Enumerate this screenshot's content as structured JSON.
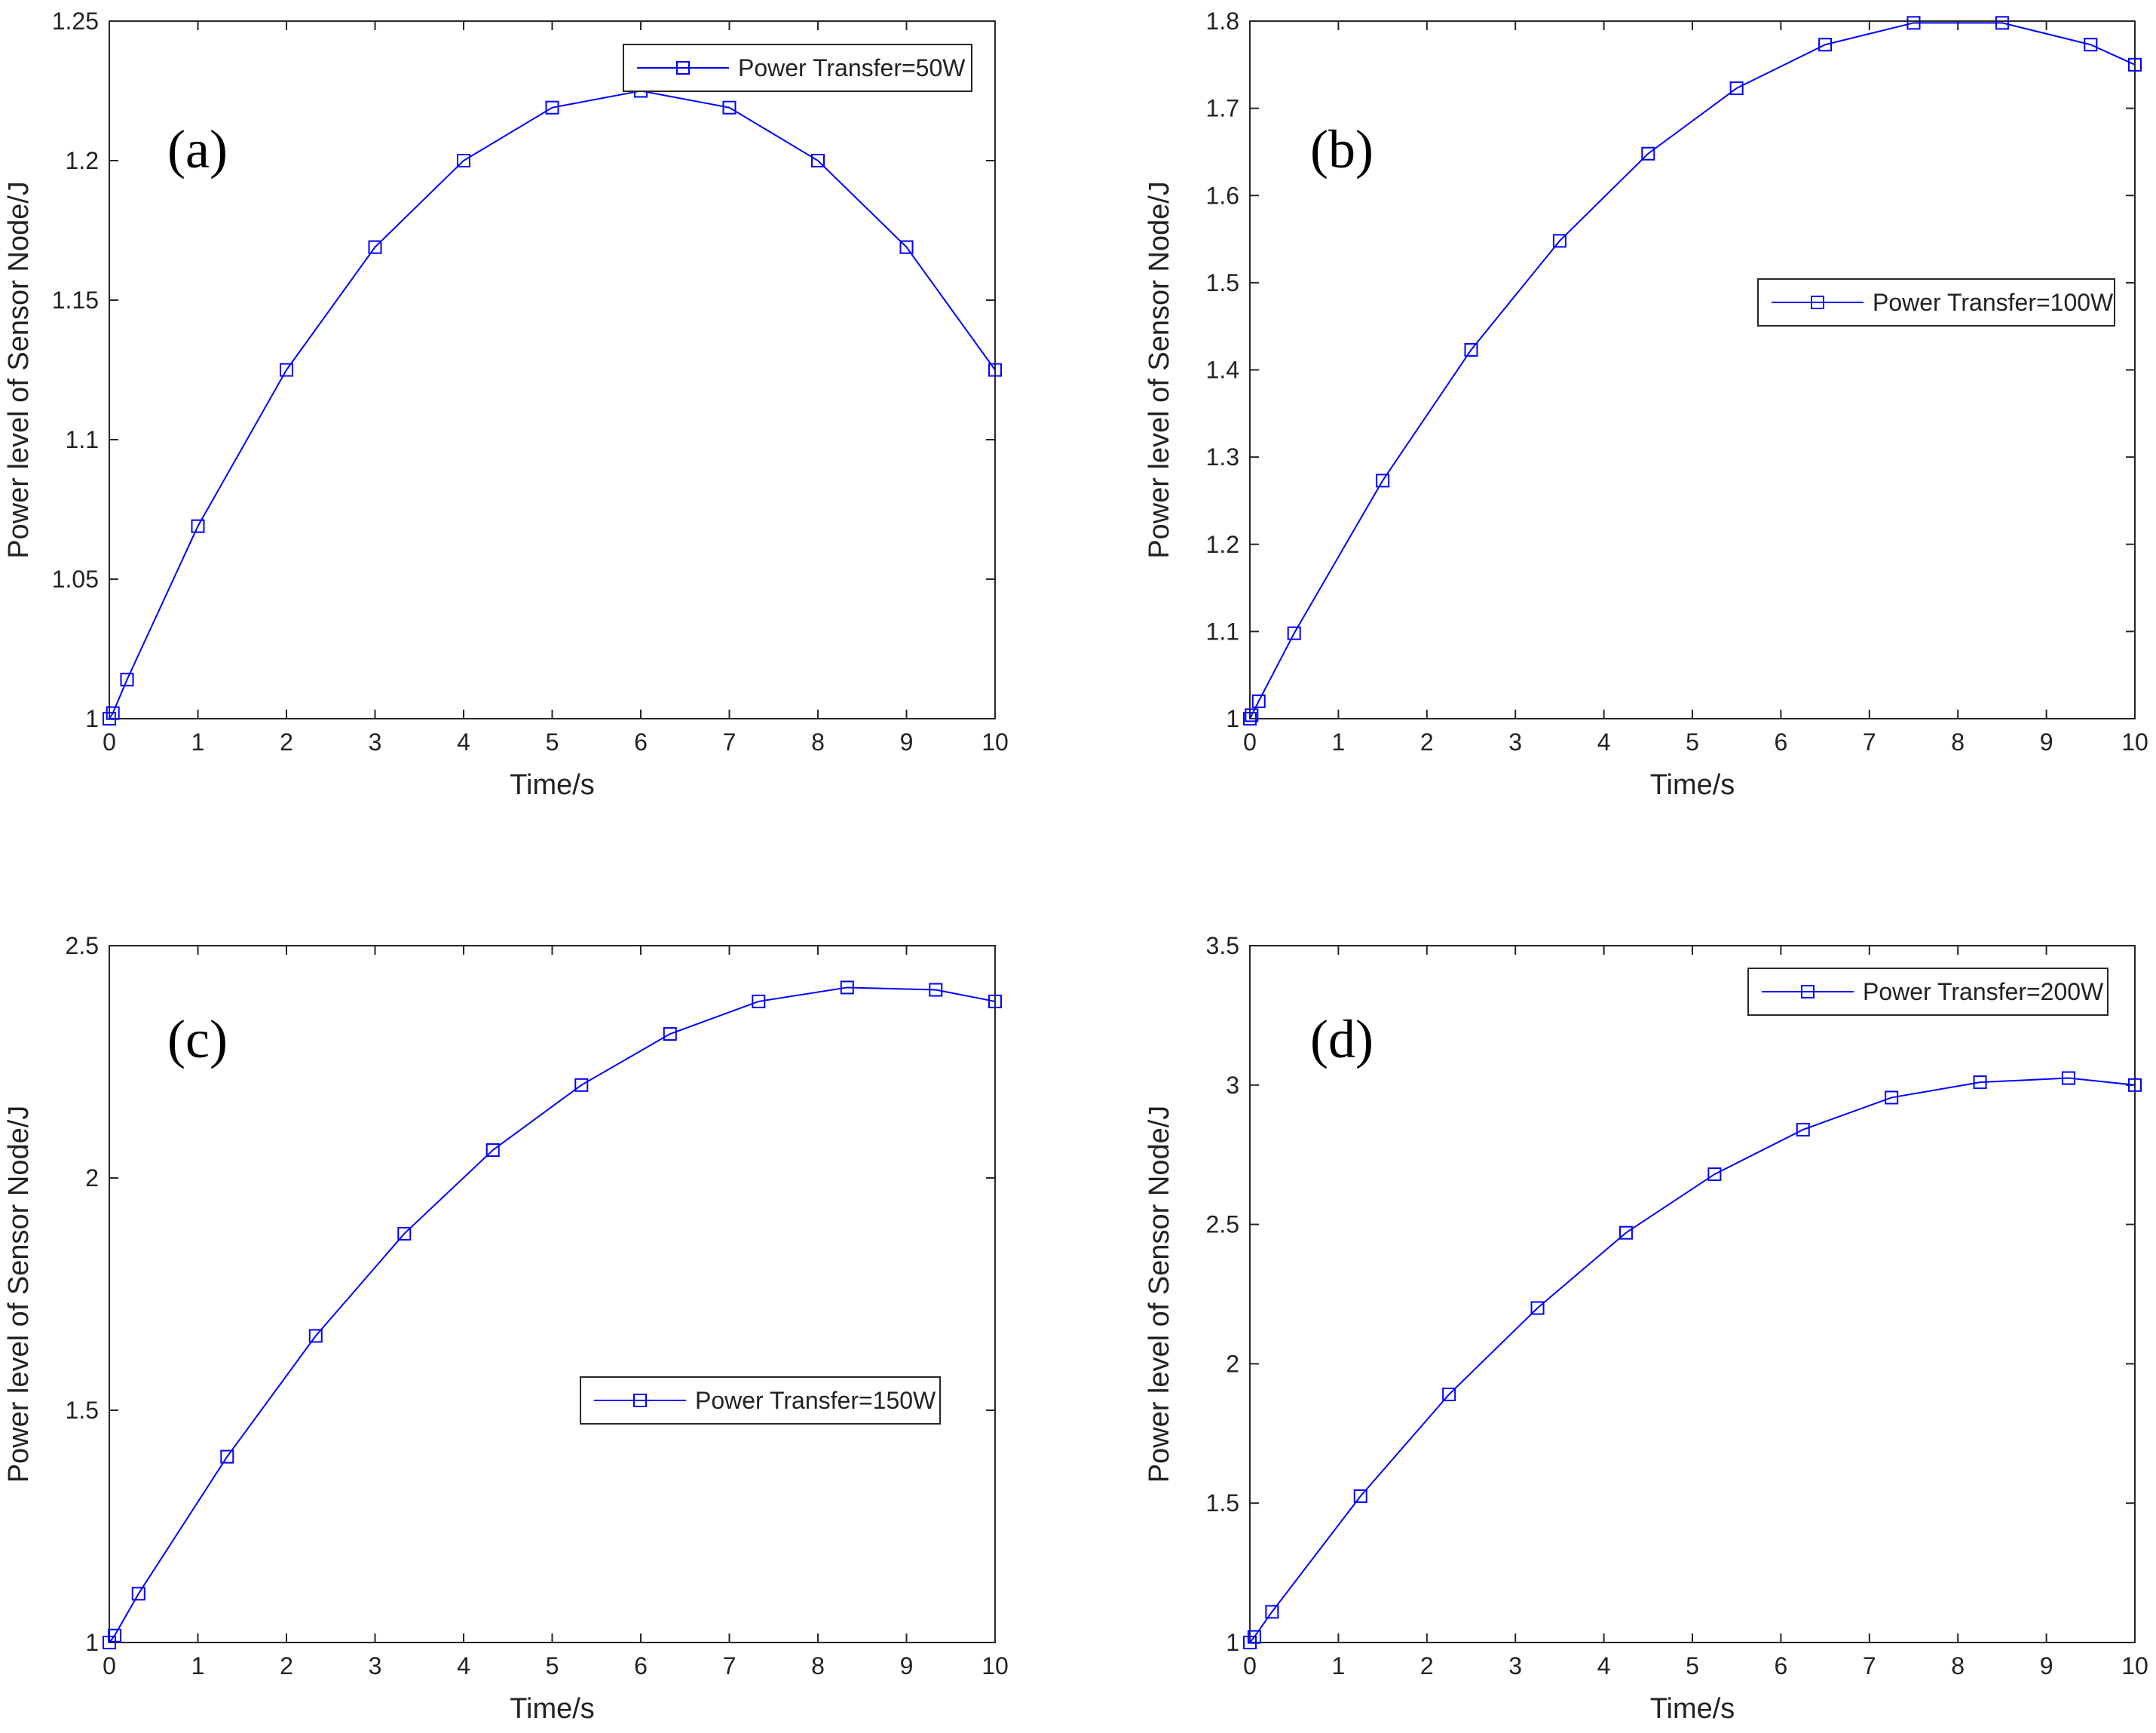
{
  "chart_data": [
    {
      "type": "line",
      "panel": "(a)",
      "xlabel": "Time/s",
      "ylabel": "Power level of Sensor Node/J",
      "xlim": [
        0,
        10
      ],
      "ylim": [
        1,
        1.25
      ],
      "xticks": [
        "0",
        "1",
        "2",
        "3",
        "4",
        "5",
        "6",
        "7",
        "8",
        "9",
        "10"
      ],
      "yticks": [
        "1",
        "1.05",
        "1.1",
        "1.15",
        "1.2",
        "1.25"
      ],
      "legend_position": "top-right",
      "grid": false,
      "series": [
        {
          "name": "Power Transfer=50W",
          "color": "#0000ff",
          "marker": "square",
          "x": [
            0,
            0.04,
            0.2,
            1,
            2,
            3,
            4,
            5,
            6,
            7,
            8,
            9,
            10
          ],
          "y": [
            1.0,
            1.002,
            1.014,
            1.069,
            1.125,
            1.169,
            1.2,
            1.219,
            1.225,
            1.219,
            1.2,
            1.169,
            1.125
          ]
        }
      ]
    },
    {
      "type": "line",
      "panel": "(b)",
      "xlabel": "Time/s",
      "ylabel": "Power level of Sensor Node/J",
      "xlim": [
        0,
        10
      ],
      "ylim": [
        1,
        1.8
      ],
      "xticks": [
        "0",
        "1",
        "2",
        "3",
        "4",
        "5",
        "6",
        "7",
        "8",
        "9",
        "10"
      ],
      "yticks": [
        "1",
        "1.1",
        "1.2",
        "1.3",
        "1.4",
        "1.5",
        "1.6",
        "1.7",
        "1.8"
      ],
      "legend_position": "middle-right",
      "grid": false,
      "series": [
        {
          "name": "Power Transfer=100W",
          "color": "#0000ff",
          "marker": "square",
          "x": [
            0,
            0.02,
            0.1,
            0.5,
            1.5,
            2.5,
            3.5,
            4.5,
            5.5,
            6.5,
            7.5,
            8.5,
            9.5,
            10
          ],
          "y": [
            1.0,
            1.004,
            1.02,
            1.098,
            1.273,
            1.423,
            1.548,
            1.648,
            1.723,
            1.773,
            1.798,
            1.798,
            1.773,
            1.75
          ]
        }
      ]
    },
    {
      "type": "line",
      "panel": "(c)",
      "xlabel": "Time/s",
      "ylabel": "Power level of Sensor Node/J",
      "xlim": [
        0,
        10
      ],
      "ylim": [
        1,
        2.5
      ],
      "xticks": [
        "0",
        "1",
        "2",
        "3",
        "4",
        "5",
        "6",
        "7",
        "8",
        "9",
        "10"
      ],
      "yticks": [
        "1",
        "1.5",
        "2",
        "2.5"
      ],
      "legend_position": "lower-right",
      "grid": false,
      "series": [
        {
          "name": "Power Transfer=150W",
          "color": "#0000ff",
          "marker": "square",
          "x": [
            0,
            0.06,
            0.33,
            1.33,
            2.33,
            3.33,
            4.33,
            5.33,
            6.33,
            7.33,
            8.33,
            9.33,
            10
          ],
          "y": [
            1.0,
            1.015,
            1.105,
            1.4,
            1.66,
            1.88,
            2.06,
            2.2,
            2.31,
            2.38,
            2.41,
            2.405,
            2.38
          ]
        }
      ]
    },
    {
      "type": "line",
      "panel": "(d)",
      "xlabel": "Time/s",
      "ylabel": "Power level of Sensor Node/J",
      "xlim": [
        0,
        10
      ],
      "ylim": [
        1,
        3.5
      ],
      "xticks": [
        "0",
        "1",
        "2",
        "3",
        "4",
        "5",
        "6",
        "7",
        "8",
        "9",
        "10"
      ],
      "yticks": [
        "1",
        "1.5",
        "2",
        "2.5",
        "3",
        "3.5"
      ],
      "legend_position": "top-right",
      "grid": false,
      "series": [
        {
          "name": "Power Transfer=200W",
          "color": "#0000ff",
          "marker": "square",
          "x": [
            0,
            0.05,
            0.25,
            1.25,
            2.25,
            3.25,
            4.25,
            5.25,
            6.25,
            7.25,
            8.25,
            9.25,
            10
          ],
          "y": [
            1.0,
            1.02,
            1.11,
            1.525,
            1.89,
            2.2,
            2.47,
            2.68,
            2.84,
            2.955,
            3.01,
            3.025,
            3.0
          ]
        }
      ]
    }
  ]
}
